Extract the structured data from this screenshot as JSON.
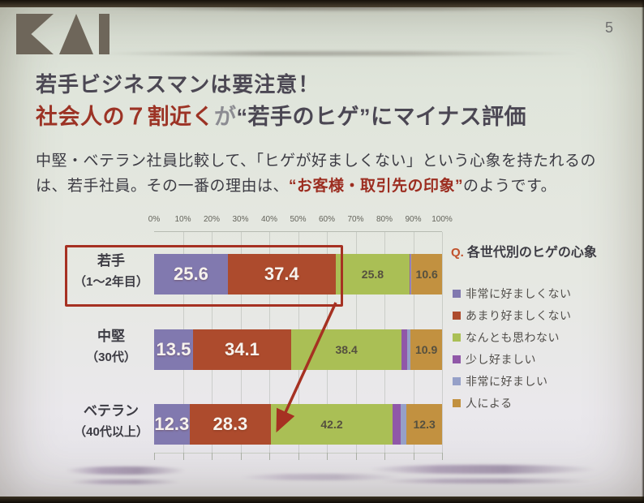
{
  "page_number": "5",
  "logo": {
    "name": "KAI"
  },
  "title": {
    "line1": "若手ビジネスマンは要注意！",
    "line2_red": "社会人の７割近く",
    "line2_gray": "が",
    "line2_dark": "“若手のヒゲ”にマイナス評価"
  },
  "body": {
    "line1": "中堅・ベテラン社員比較して、「ヒゲが好ましくない」という心象を持たれるの",
    "line2_pre": "は、若手社員。その一番の理由は、",
    "line2_red": "“お客様・取引先の印象”",
    "line2_post": "のようです。"
  },
  "legend": {
    "question_prefix": "Q.",
    "question_title": "各世代別のヒゲの心象"
  },
  "chart_data": {
    "type": "bar",
    "orientation": "horizontal-stacked",
    "title": "Q. 各世代別のヒゲの心象",
    "xlim": [
      0,
      100
    ],
    "x_ticks": [
      "0%",
      "10%",
      "20%",
      "30%",
      "40%",
      "50%",
      "60%",
      "70%",
      "80%",
      "90%",
      "100%"
    ],
    "grid": true,
    "legend_position": "right",
    "categories": [
      {
        "label": "若手",
        "sublabel": "（1〜2年目）"
      },
      {
        "label": "中堅",
        "sublabel": "（30代）"
      },
      {
        "label": "ベテラン",
        "sublabel": "（40代以上）"
      }
    ],
    "series": [
      {
        "name": "非常に好ましくない",
        "color": "#8179af",
        "values": [
          25.6,
          13.5,
          12.3
        ],
        "label_style": "light"
      },
      {
        "name": "あまり好ましくない",
        "color": "#ad4b2d",
        "values": [
          37.4,
          34.1,
          28.3
        ],
        "label_style": "light"
      },
      {
        "name": "なんとも思わない",
        "color": "#aabf55",
        "values": [
          25.8,
          38.4,
          42.2
        ],
        "label_style": "dark"
      },
      {
        "name": "少し好ましい",
        "color": "#9058a8",
        "values": [
          0.3,
          2.0,
          2.8
        ],
        "label_style": "none",
        "note": "unlabeled, estimated"
      },
      {
        "name": "非常に好ましい",
        "color": "#96a0c8",
        "values": [
          0.3,
          1.1,
          2.1
        ],
        "label_style": "none",
        "note": "unlabeled, estimated"
      },
      {
        "name": "人による",
        "color": "#c29140",
        "values": [
          10.6,
          10.9,
          12.3
        ],
        "label_style": "dark"
      }
    ],
    "annotations": {
      "highlight": "red box around 若手(1〜2年目) negative segments 25.6+37.4",
      "arrow": "red arrow from highlight box down to end of negative segments of ベテラン bar",
      "accent_color": "#a63122"
    }
  },
  "colors": {
    "title_dark": "#4b4753",
    "title_red": "#9c3325",
    "body_red": "#9c2d20",
    "accent_red": "#a63122"
  }
}
